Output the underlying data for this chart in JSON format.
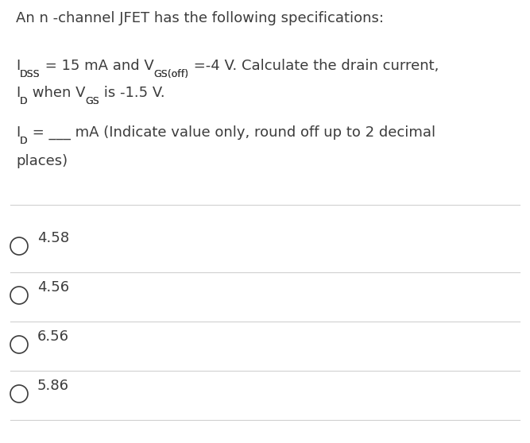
{
  "background_color": "#ffffff",
  "text_color": "#3c3c3c",
  "line_color": "#d0d0d0",
  "title": "An n -channel JFET has the following specifications:",
  "choices": [
    "4.58",
    "4.56",
    "6.56",
    "5.86"
  ],
  "font_size_main": 13,
  "font_size_sub": 9,
  "figsize": [
    6.67,
    5.58
  ],
  "dpi": 100
}
